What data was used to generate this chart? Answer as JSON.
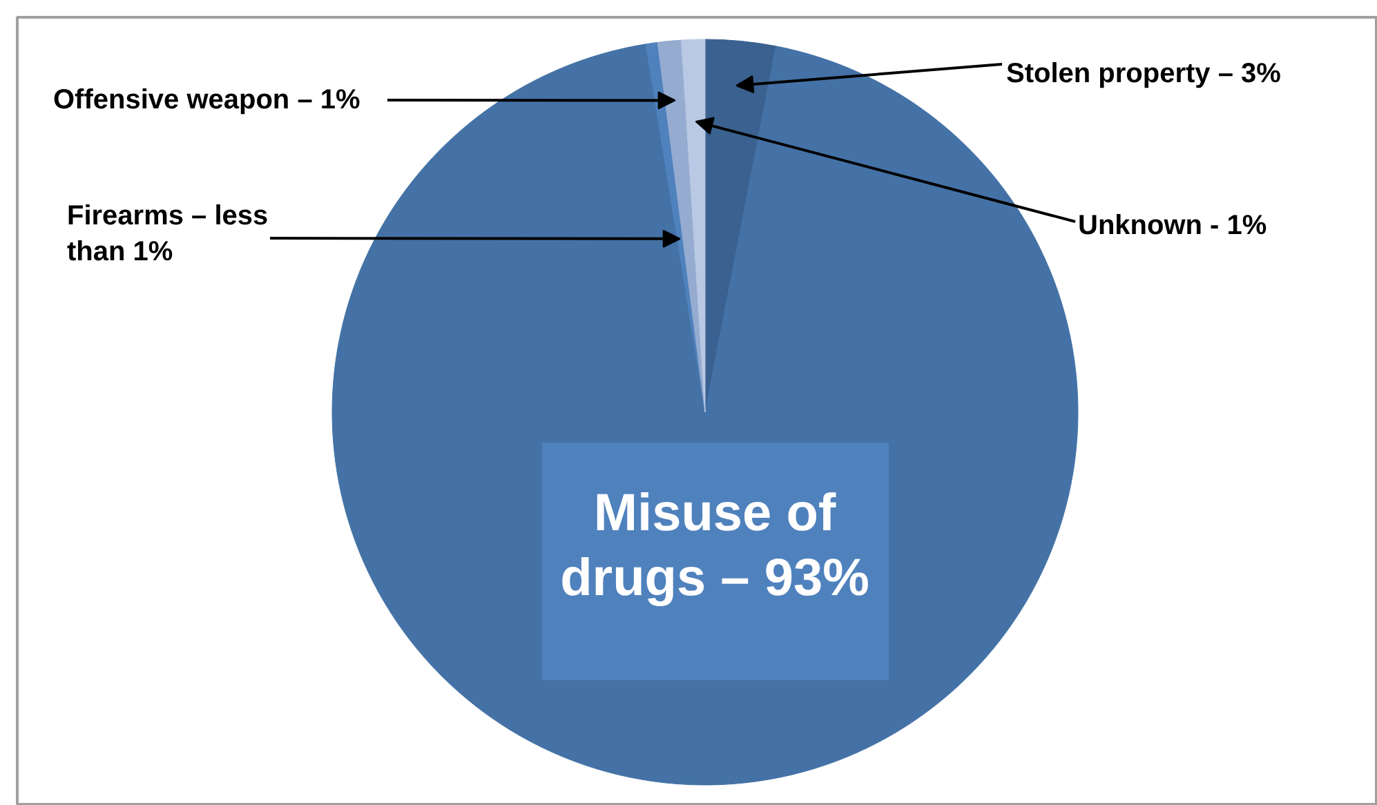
{
  "chart_data": {
    "type": "pie",
    "categories": [
      "Stolen property – 3%",
      "Misuse of drugs – 93%",
      "Firearms – less than 1%",
      "Offensive weapon – 1%",
      "Unknown - 1%"
    ],
    "values": [
      3,
      93,
      0.5,
      1,
      1
    ],
    "colors": [
      "#3a6190",
      "#4472a6",
      "#4f81bd",
      "#95abd0",
      "#b9c9e3"
    ]
  }
}
